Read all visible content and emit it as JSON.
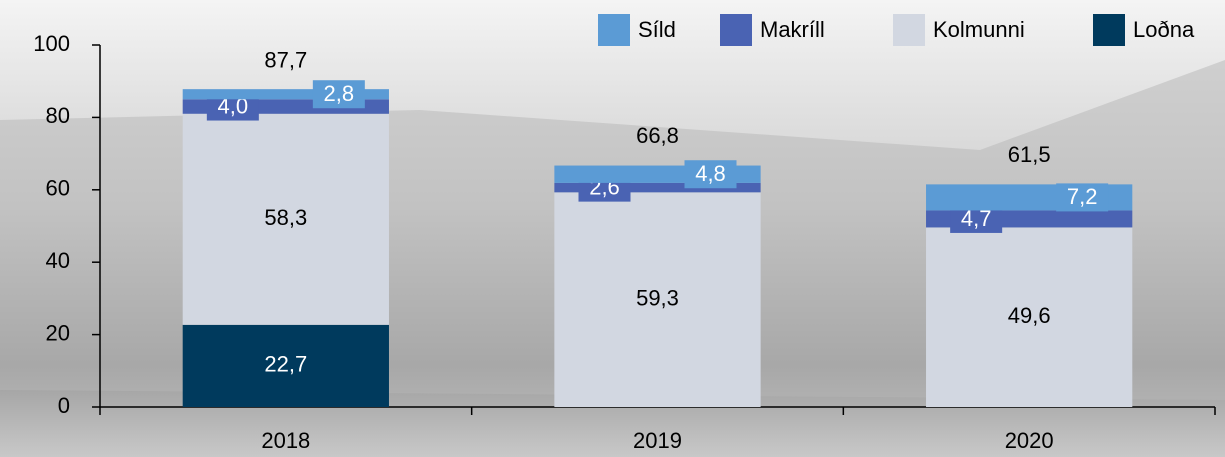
{
  "chart_data": {
    "type": "stacked_bar",
    "categories": [
      "2018",
      "2019",
      "2020"
    ],
    "series": [
      {
        "name": "Síld",
        "color": "#5b9bd5",
        "values": [
          2.8,
          4.8,
          7.2
        ],
        "value_labels": [
          "2,8",
          "4,8",
          "7,2"
        ]
      },
      {
        "name": "Makríll",
        "color": "#4a63b3",
        "values": [
          4.0,
          2.6,
          4.7
        ],
        "value_labels": [
          "4,0",
          "2,6",
          "4,7"
        ]
      },
      {
        "name": "Kolmunni",
        "color": "#d2d7e1",
        "values": [
          58.3,
          59.3,
          49.6
        ],
        "value_labels": [
          "58,3",
          "59,3",
          "49,6"
        ]
      },
      {
        "name": "Loðna",
        "color": "#003a5d",
        "values": [
          22.7,
          null,
          null
        ],
        "value_labels": [
          "22,7",
          null,
          null
        ]
      }
    ],
    "totals": [
      87.7,
      66.8,
      61.5
    ],
    "total_labels": [
      "87,7",
      "66,8",
      "61,5"
    ],
    "ylim": [
      0,
      100
    ],
    "yticks": [
      0,
      20,
      40,
      60,
      80,
      100
    ],
    "legend": "top-right"
  }
}
